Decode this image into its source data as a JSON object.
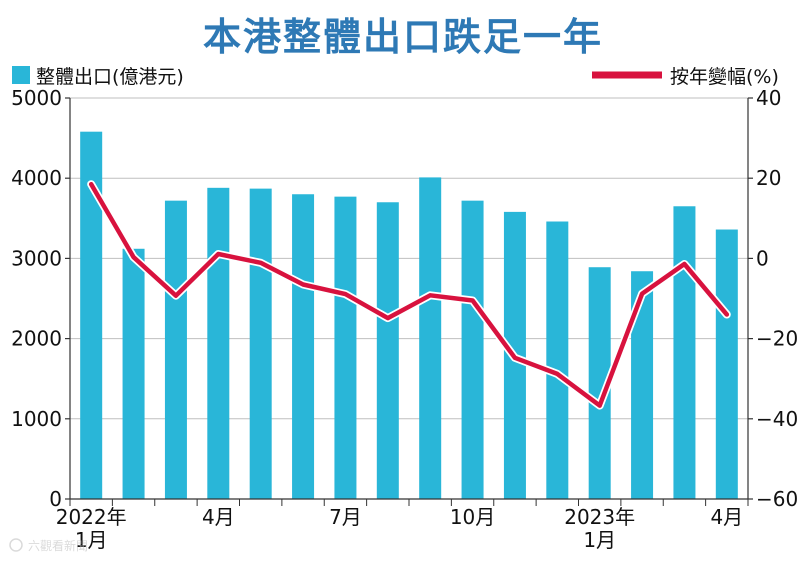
{
  "chart_data": {
    "type": "bar+line",
    "title": "本港整體出口跌足一年",
    "categories": [
      "2022-01",
      "2022-02",
      "2022-03",
      "2022-04",
      "2022-05",
      "2022-06",
      "2022-07",
      "2022-08",
      "2022-09",
      "2022-10",
      "2022-11",
      "2022-12",
      "2023-01",
      "2023-02",
      "2023-03",
      "2023-04"
    ],
    "x_tick_labels": [
      {
        "index": 0,
        "lines": [
          "2022年",
          "1月"
        ]
      },
      {
        "index": 3,
        "lines": [
          "4月"
        ]
      },
      {
        "index": 6,
        "lines": [
          "7月"
        ]
      },
      {
        "index": 9,
        "lines": [
          "10月"
        ]
      },
      {
        "index": 12,
        "lines": [
          "2023年",
          "1月"
        ]
      },
      {
        "index": 15,
        "lines": [
          "4月"
        ]
      }
    ],
    "series": [
      {
        "name": "整體出口(億港元)",
        "type": "bar",
        "axis": "left",
        "color": "#29b6d8",
        "values": [
          4580,
          3120,
          3720,
          3880,
          3870,
          3800,
          3770,
          3700,
          4010,
          3720,
          3580,
          3460,
          2890,
          2840,
          3650,
          3360
        ]
      },
      {
        "name": "按年變幅(%)",
        "type": "line",
        "axis": "right",
        "color": "#d8123e",
        "values": [
          18.5,
          0.3,
          -9.3,
          1.1,
          -1.1,
          -6.5,
          -8.9,
          -14.9,
          -9.2,
          -10.5,
          -24.8,
          -28.8,
          -36.7,
          -8.8,
          -1.4,
          -14.0
        ]
      }
    ],
    "y_left": {
      "label": "整體出口(億港元)",
      "lim": [
        0,
        5000
      ],
      "ticks": [
        "5000",
        "4000",
        "3000",
        "2000",
        "1000",
        "0"
      ]
    },
    "y_right": {
      "label": "按年變幅(%)",
      "lim": [
        -60,
        40
      ],
      "ticks": [
        "40",
        "20",
        "0",
        "−20",
        "−40",
        "−60"
      ]
    },
    "grid": true,
    "legend": [
      {
        "label": "整體出口(億港元)",
        "position": "top-left"
      },
      {
        "label": "按年變幅(%)",
        "position": "top-right"
      }
    ],
    "watermark": "六觀看新聞"
  }
}
